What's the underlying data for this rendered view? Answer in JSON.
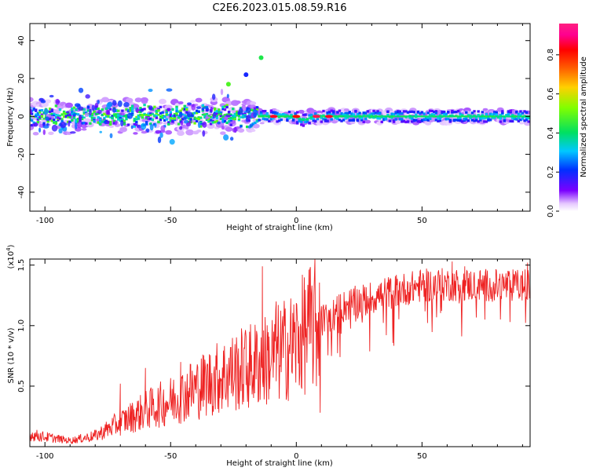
{
  "title": "C2E6.2023.015.08.59.R16",
  "colors": {
    "snr_line": "#ee2222",
    "ridge": "#00e0c0",
    "axis": "#000000"
  },
  "chart_data": [
    {
      "type": "heatmap",
      "xlabel": "Height of straight line (km)",
      "ylabel": "Frequency (Hz)",
      "xlim": [
        -106,
        93
      ],
      "ylim": [
        -50,
        49
      ],
      "x_ticks": [
        "-100",
        "-50",
        "0",
        "50"
      ],
      "y_ticks": [
        "40",
        "20",
        "0",
        "-20",
        "-40"
      ],
      "x_tick_values": [
        -100,
        -50,
        0,
        50
      ],
      "y_tick_values": [
        40,
        20,
        0,
        -20,
        -40
      ],
      "colorbar": {
        "label": "Normalized spectral amplitude",
        "range": [
          0,
          0.96
        ],
        "ticks": [
          "0.0",
          "0.2",
          "0.4",
          "0.6",
          "0.8"
        ],
        "tick_values": [
          0,
          0.2,
          0.4,
          0.6,
          0.8
        ]
      },
      "features": {
        "main_band_center_hz": 0,
        "main_band_halfwidth_hz": 3,
        "scatter_region_x": [
          -106,
          -15
        ],
        "scatter_spread_hz": 10,
        "outlier_points": [
          {
            "x": -14,
            "y": 31,
            "v": 0.45
          },
          {
            "x": -27,
            "y": 17,
            "v": 0.5
          },
          {
            "x": -20,
            "y": 22,
            "v": 0.2
          }
        ],
        "hot_spots": [
          {
            "x": -9,
            "v": 0.9
          },
          {
            "x": 0,
            "v": 0.85
          },
          {
            "x": 8,
            "v": 0.95
          },
          {
            "x": 13,
            "v": 0.9
          }
        ]
      }
    },
    {
      "type": "line",
      "xlabel": "Height of straight line (km)",
      "ylabel": "SNR (10 * v/v)",
      "y_multiplier_label": "(x10",
      "y_multiplier_exp": "4",
      "y_multiplier_close": ")",
      "xlim": [
        -106,
        93
      ],
      "ylim": [
        0,
        15500
      ],
      "x_ticks": [
        "-100",
        "-50",
        "0",
        "50"
      ],
      "y_ticks": [
        "1.5",
        "1.0",
        "0.5"
      ],
      "x_tick_values": [
        -100,
        -50,
        0,
        50
      ],
      "y_tick_values": [
        15000,
        10000,
        5000
      ],
      "series": [
        {
          "envelope": {
            "x": [
              -106,
              -90,
              -80,
              -70,
              -60,
              -50,
              -40,
              -30,
              -20,
              -10,
              0,
              5,
              10,
              15,
              20,
              30,
              40,
              50,
              60,
              70,
              80,
              93
            ],
            "y": [
              1000,
              500,
              900,
              2000,
              3000,
              3800,
              4800,
              5800,
              6500,
              7300,
              8600,
              9800,
              10400,
              11000,
              11700,
              12300,
              12900,
              13300,
              13400,
              13350,
              13300,
              13300
            ]
          },
          "spikes": [
            {
              "x": -70,
              "y": 5200
            },
            {
              "x": -60,
              "y": 6500
            },
            {
              "x": -46,
              "y": 7000
            },
            {
              "x": -42,
              "y": 6800
            },
            {
              "x": -26,
              "y": 8200
            },
            {
              "x": -20,
              "y": 9100
            },
            {
              "x": -13.5,
              "y": 14900
            },
            {
              "x": -8,
              "y": 12000
            },
            {
              "x": 7.5,
              "y": 12900
            },
            {
              "x": 8,
              "y": 5000
            },
            {
              "x": 9.5,
              "y": 2800
            },
            {
              "x": 62,
              "y": 15300
            },
            {
              "x": 67,
              "y": 14900
            },
            {
              "x": 92,
              "y": 15200
            }
          ]
        }
      ]
    }
  ]
}
